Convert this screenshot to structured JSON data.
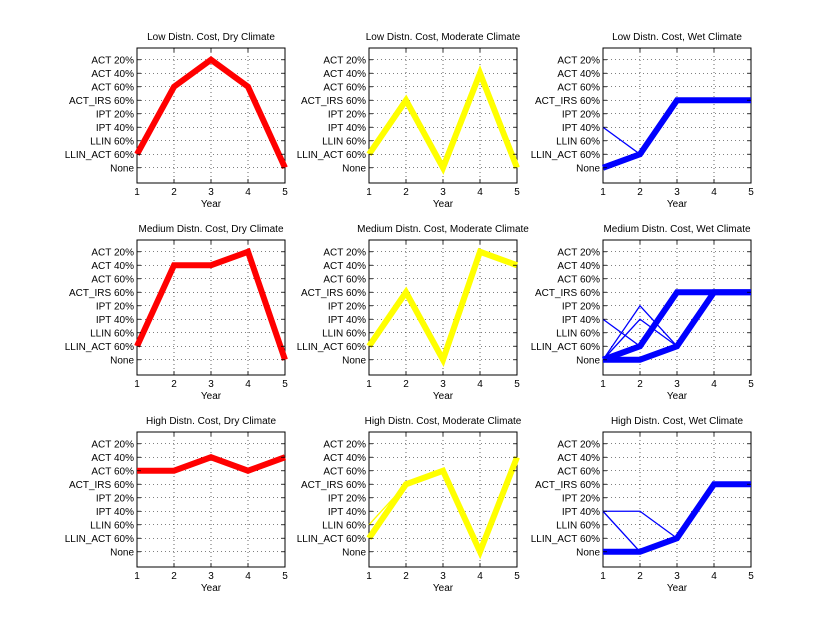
{
  "figure": {
    "y_categories": [
      "ACT 20%",
      "ACT 40%",
      "ACT 60%",
      "ACT_IRS 60%",
      "IPT 20%",
      "IPT 40%",
      "LLIN 60%",
      "LLIN_ACT 60%",
      "None"
    ],
    "x_ticks": [
      "1",
      "2",
      "3",
      "4",
      "5"
    ],
    "xlabel": "Year"
  },
  "chart_data": [
    {
      "type": "line",
      "title": "Low Distn. Cost, Dry Climate",
      "xlabel": "Year",
      "x": [
        1,
        2,
        3,
        4,
        5
      ],
      "color": "#ff0000",
      "series": [
        {
          "y": [
            "LLIN_ACT 60%",
            "ACT 60%",
            "ACT 20%",
            "ACT 60%",
            "None"
          ],
          "weight": "thick"
        }
      ]
    },
    {
      "type": "line",
      "title": "Low Distn. Cost, Moderate Climate",
      "xlabel": "Year",
      "x": [
        1,
        2,
        3,
        4,
        5
      ],
      "color": "#ffff00",
      "series": [
        {
          "y": [
            "LLIN_ACT 60%",
            "ACT_IRS 60%",
            "None",
            "ACT 40%",
            "None"
          ],
          "weight": "thick"
        }
      ]
    },
    {
      "type": "line",
      "title": "Low Distn. Cost, Wet Climate",
      "xlabel": "Year",
      "x": [
        1,
        2,
        3,
        4,
        5
      ],
      "color": "#0000ff",
      "series": [
        {
          "y": [
            "None",
            "LLIN_ACT 60%",
            "ACT_IRS 60%",
            "ACT_IRS 60%",
            "ACT_IRS 60%"
          ],
          "weight": "thick"
        },
        {
          "y": [
            "IPT 40%",
            "LLIN_ACT 60%",
            "ACT_IRS 60%",
            "ACT_IRS 60%",
            "ACT_IRS 60%"
          ],
          "weight": "thin"
        }
      ]
    },
    {
      "type": "line",
      "title": "Medium Distn. Cost, Dry Climate",
      "xlabel": "Year",
      "x": [
        1,
        2,
        3,
        4,
        5
      ],
      "color": "#ff0000",
      "series": [
        {
          "y": [
            "LLIN_ACT 60%",
            "ACT 40%",
            "ACT 40%",
            "ACT 20%",
            "None"
          ],
          "weight": "thick"
        }
      ]
    },
    {
      "type": "line",
      "title": "Medium Distn. Cost, Moderate Climate",
      "xlabel": "Year",
      "x": [
        1,
        2,
        3,
        4,
        5
      ],
      "color": "#ffff00",
      "series": [
        {
          "y": [
            "LLIN_ACT 60%",
            "ACT_IRS 60%",
            "None",
            "ACT 20%",
            "ACT 40%"
          ],
          "weight": "thick"
        }
      ]
    },
    {
      "type": "line",
      "title": "Medium Distn. Cost, Wet Climate",
      "xlabel": "Year",
      "x": [
        1,
        2,
        3,
        4,
        5
      ],
      "color": "#0000ff",
      "series": [
        {
          "y": [
            "None",
            "LLIN_ACT 60%",
            "ACT_IRS 60%",
            "ACT_IRS 60%",
            "ACT_IRS 60%"
          ],
          "weight": "thick"
        },
        {
          "y": [
            "None",
            "None",
            "LLIN_ACT 60%",
            "ACT_IRS 60%",
            "ACT_IRS 60%"
          ],
          "weight": "thick"
        },
        {
          "y": [
            "IPT 40%",
            "LLIN_ACT 60%",
            "ACT_IRS 60%",
            "ACT_IRS 60%",
            "ACT_IRS 60%"
          ],
          "weight": "thin"
        },
        {
          "y": [
            "None",
            "IPT 20%",
            "LLIN_ACT 60%",
            "ACT_IRS 60%",
            "ACT_IRS 60%"
          ],
          "weight": "thin"
        },
        {
          "y": [
            "None",
            "IPT 40%",
            "LLIN_ACT 60%",
            "ACT_IRS 60%",
            "ACT_IRS 60%"
          ],
          "weight": "thin"
        }
      ]
    },
    {
      "type": "line",
      "title": "High Distn. Cost, Dry Climate",
      "xlabel": "Year",
      "x": [
        1,
        2,
        3,
        4,
        5
      ],
      "color": "#ff0000",
      "series": [
        {
          "y": [
            "ACT 60%",
            "ACT 60%",
            "ACT 40%",
            "ACT 60%",
            "ACT 40%"
          ],
          "weight": "thick"
        }
      ]
    },
    {
      "type": "line",
      "title": "High Distn. Cost, Moderate Climate",
      "xlabel": "Year",
      "x": [
        1,
        2,
        3,
        4,
        5
      ],
      "color": "#ffff00",
      "series": [
        {
          "y": [
            "LLIN_ACT 60%",
            "ACT_IRS 60%",
            "ACT 60%",
            "None",
            "ACT 40%"
          ],
          "weight": "thick"
        },
        {
          "y": [
            "LLIN 60%",
            "ACT_IRS 60%",
            "ACT 60%",
            "None",
            "ACT 40%"
          ],
          "weight": "thin"
        }
      ]
    },
    {
      "type": "line",
      "title": "High Distn. Cost, Wet Climate",
      "xlabel": "Year",
      "x": [
        1,
        2,
        3,
        4,
        5
      ],
      "color": "#0000ff",
      "series": [
        {
          "y": [
            "None",
            "None",
            "LLIN_ACT 60%",
            "ACT_IRS 60%",
            "ACT_IRS 60%"
          ],
          "weight": "thick"
        },
        {
          "y": [
            "IPT 40%",
            "None",
            "LLIN_ACT 60%",
            "ACT_IRS 60%",
            "ACT_IRS 60%"
          ],
          "weight": "thin"
        },
        {
          "y": [
            "IPT 40%",
            "IPT 40%",
            "LLIN_ACT 60%",
            "ACT_IRS 60%",
            "ACT_IRS 60%"
          ],
          "weight": "thin"
        }
      ]
    }
  ]
}
